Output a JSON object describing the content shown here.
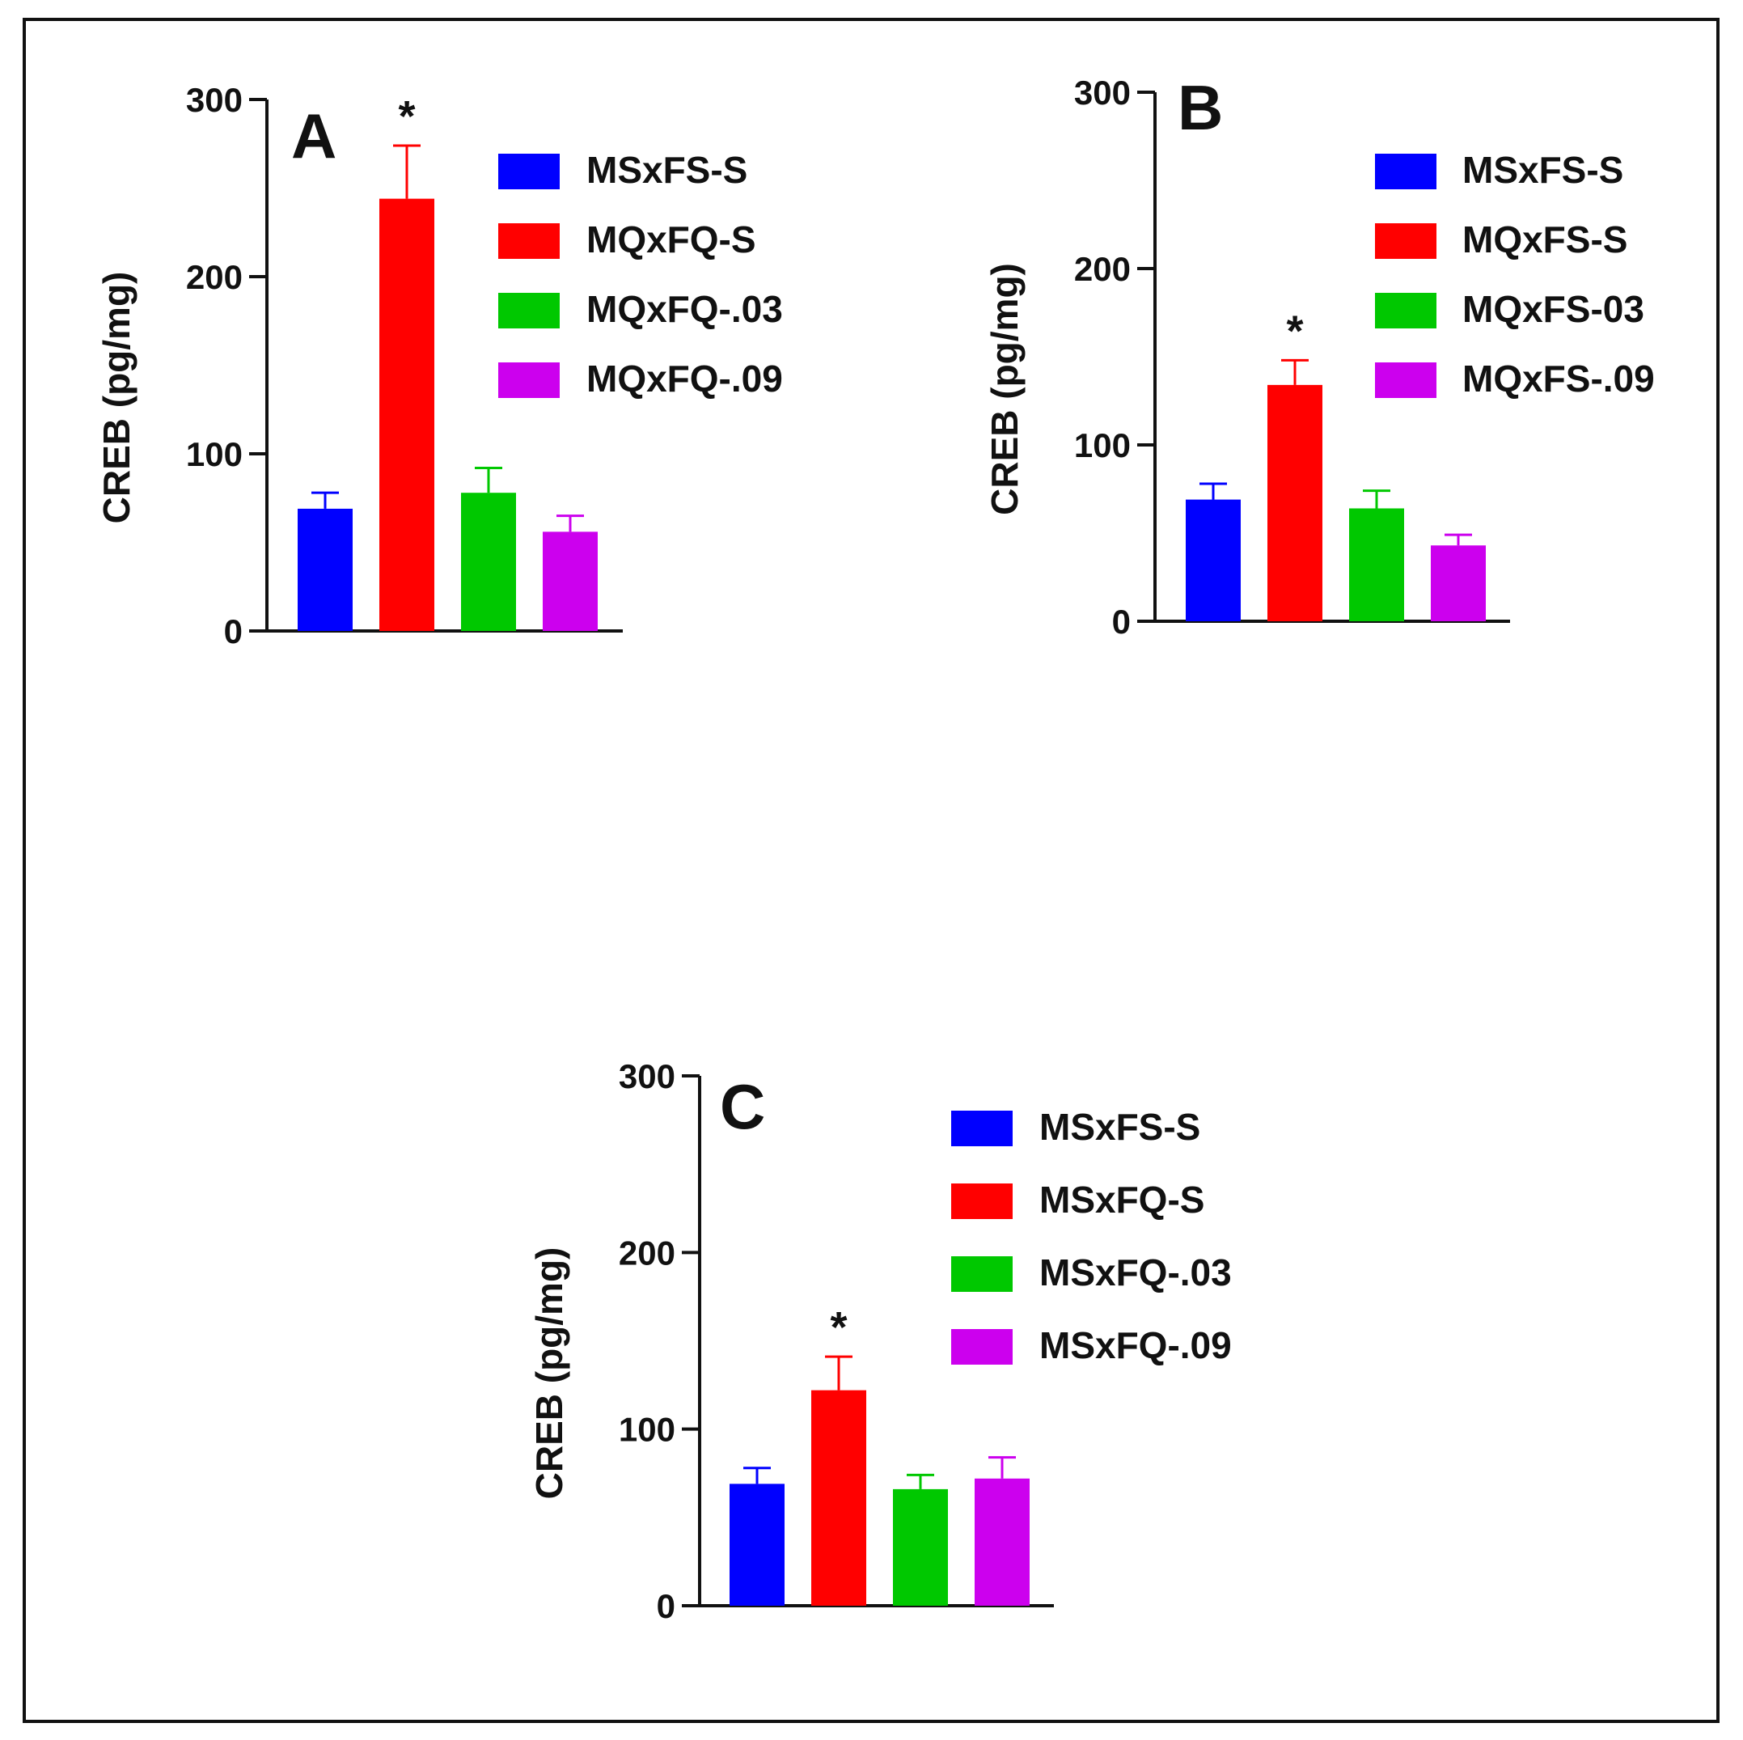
{
  "colors": {
    "blue": "#0000ff",
    "red": "#ff0000",
    "green": "#00c800",
    "magenta": "#cc00ee",
    "axis": "#111111"
  },
  "chart_data": [
    {
      "type": "bar",
      "panel_label": "A",
      "ylabel": "CREB (pg/mg)",
      "ylim": [
        0,
        300
      ],
      "yticks": [
        0,
        100,
        200,
        300
      ],
      "categories": [
        "MSxFS-S",
        "MQxFQ-S",
        "MQxFQ-.03",
        "MQxFQ-.09"
      ],
      "values": [
        69,
        244,
        78,
        56
      ],
      "errors": [
        9,
        30,
        14,
        9
      ],
      "significance": [
        "",
        "*",
        "",
        ""
      ],
      "colors": [
        "#0000ff",
        "#ff0000",
        "#00c800",
        "#cc00ee"
      ],
      "legend": "top-right"
    },
    {
      "type": "bar",
      "panel_label": "B",
      "ylabel": "CREB (pg/mg)",
      "ylim": [
        0,
        300
      ],
      "yticks": [
        0,
        100,
        200,
        300
      ],
      "categories": [
        "MSxFS-S",
        "MQxFS-S",
        "MQxFS-03",
        "MQxFS-.09"
      ],
      "values": [
        69,
        134,
        64,
        43
      ],
      "errors": [
        9,
        14,
        10,
        6
      ],
      "significance": [
        "",
        "*",
        "",
        ""
      ],
      "colors": [
        "#0000ff",
        "#ff0000",
        "#00c800",
        "#cc00ee"
      ],
      "legend": "top-right"
    },
    {
      "type": "bar",
      "panel_label": "C",
      "ylabel": "CREB (pg/mg)",
      "ylim": [
        0,
        300
      ],
      "yticks": [
        0,
        100,
        200,
        300
      ],
      "categories": [
        "MSxFS-S",
        "MSxFQ-S",
        "MSxFQ-.03",
        "MSxFQ-.09"
      ],
      "values": [
        69,
        122,
        66,
        72
      ],
      "errors": [
        9,
        19,
        8,
        12
      ],
      "significance": [
        "",
        "*",
        "",
        ""
      ],
      "colors": [
        "#0000ff",
        "#ff0000",
        "#00c800",
        "#cc00ee"
      ],
      "legend": "top-right"
    }
  ]
}
